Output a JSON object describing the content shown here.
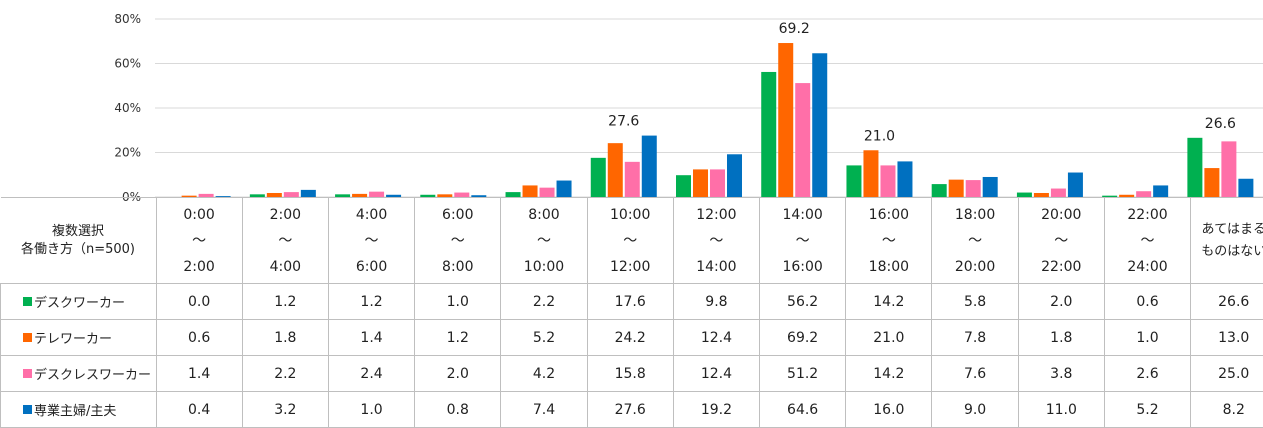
{
  "chart_data": {
    "type": "bar",
    "y_ticks": [
      "0%",
      "20%",
      "40%",
      "60%",
      "80%"
    ],
    "ylim": [
      0,
      80
    ],
    "categories": [
      {
        "from": "0:00",
        "sep": "～",
        "to": "2:00"
      },
      {
        "from": "2:00",
        "sep": "～",
        "to": "4:00"
      },
      {
        "from": "4:00",
        "sep": "～",
        "to": "6:00"
      },
      {
        "from": "6:00",
        "sep": "～",
        "to": "8:00"
      },
      {
        "from": "8:00",
        "sep": "～",
        "to": "10:00"
      },
      {
        "from": "10:00",
        "sep": "～",
        "to": "12:00"
      },
      {
        "from": "12:00",
        "sep": "～",
        "to": "14:00"
      },
      {
        "from": "14:00",
        "sep": "～",
        "to": "16:00"
      },
      {
        "from": "16:00",
        "sep": "～",
        "to": "18:00"
      },
      {
        "from": "18:00",
        "sep": "～",
        "to": "20:00"
      },
      {
        "from": "20:00",
        "sep": "～",
        "to": "22:00"
      },
      {
        "from": "22:00",
        "sep": "～",
        "to": "24:00"
      },
      {
        "line1": "あてはまる",
        "line2": "ものはない"
      }
    ],
    "series": [
      {
        "name": "デスクワーカー",
        "color": "#00b050",
        "values": [
          "0.0",
          "1.2",
          "1.2",
          "1.0",
          "2.2",
          "17.6",
          "9.8",
          "56.2",
          "14.2",
          "5.8",
          "2.0",
          "0.6",
          "26.6"
        ]
      },
      {
        "name": "テレワーカー",
        "color": "#ff6600",
        "values": [
          "0.6",
          "1.8",
          "1.4",
          "1.2",
          "5.2",
          "24.2",
          "12.4",
          "69.2",
          "21.0",
          "7.8",
          "1.8",
          "1.0",
          "13.0"
        ]
      },
      {
        "name": "デスクレスワーカー",
        "color": "#ff6fa8",
        "values": [
          "1.4",
          "2.2",
          "2.4",
          "2.0",
          "4.2",
          "15.8",
          "12.4",
          "51.2",
          "14.2",
          "7.6",
          "3.8",
          "2.6",
          "25.0"
        ]
      },
      {
        "name": "専業主婦/主夫",
        "color": "#0070c0",
        "values": [
          "0.4",
          "3.2",
          "1.0",
          "0.8",
          "7.4",
          "27.6",
          "19.2",
          "64.6",
          "16.0",
          "9.0",
          "11.0",
          "5.2",
          "8.2"
        ]
      }
    ],
    "peak_labels": [
      {
        "category_index": 5,
        "text": "27.6"
      },
      {
        "category_index": 7,
        "text": "69.2"
      },
      {
        "category_index": 8,
        "text": "21.0"
      },
      {
        "category_index": 12,
        "text": "26.6"
      }
    ],
    "table_corner": {
      "line1": "複数選択",
      "line2": "各働き方（n=500)"
    },
    "grid": true
  }
}
